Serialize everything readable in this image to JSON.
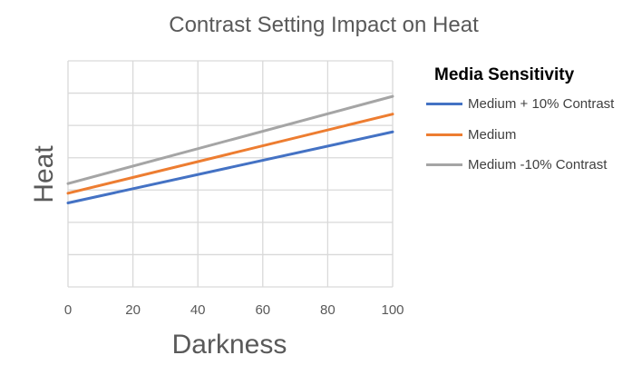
{
  "chart_data": {
    "type": "line",
    "title": "Contrast Setting Impact on Heat",
    "xlabel": "Darkness",
    "ylabel": "Heat",
    "xlim": [
      0,
      100
    ],
    "ylim": [
      0,
      7
    ],
    "xticks": [
      0,
      20,
      40,
      60,
      80,
      100
    ],
    "ytick_count": 7,
    "grid": true,
    "legend_title": "Media Sensitivity",
    "legend_position": "right",
    "x": [
      0,
      100
    ],
    "series": [
      {
        "name": "Medium + 10% Contrast",
        "color": "#4472C4",
        "values": [
          2.6,
          4.8
        ]
      },
      {
        "name": "Medium",
        "color": "#ED7D31",
        "values": [
          2.9,
          5.35
        ]
      },
      {
        "name": "Medium -10% Contrast",
        "color": "#A5A5A5",
        "values": [
          3.2,
          5.9
        ]
      }
    ]
  }
}
